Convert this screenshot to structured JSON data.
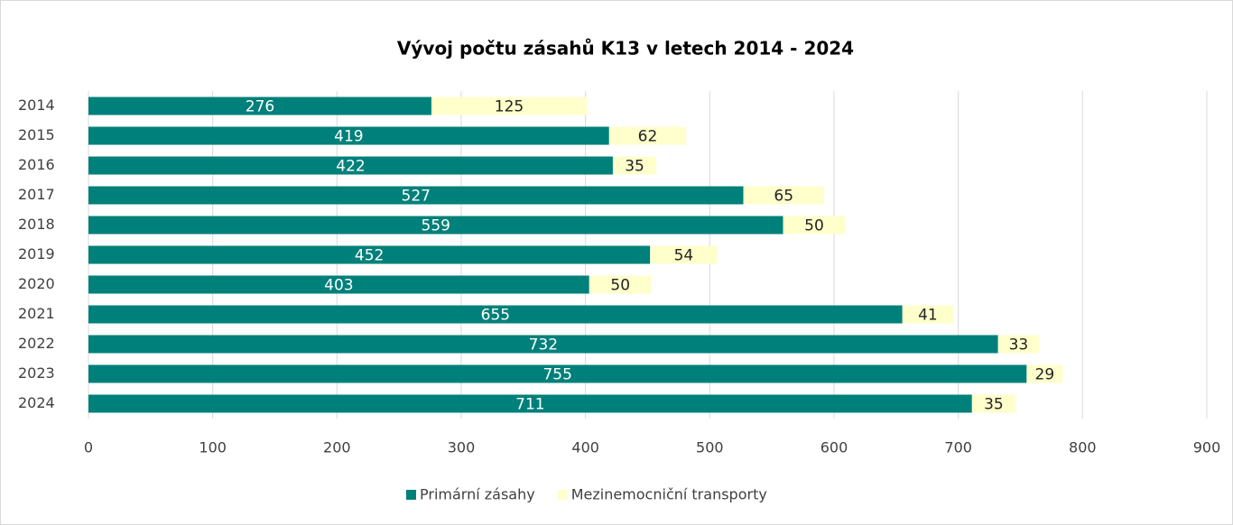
{
  "chart_data": {
    "type": "bar",
    "orientation": "horizontal",
    "stacked": true,
    "title": "Vývoj počtu zásahů K13 v letech 2014 - 2024",
    "categories": [
      "2014",
      "2015",
      "2016",
      "2017",
      "2018",
      "2019",
      "2020",
      "2021",
      "2022",
      "2023",
      "2024"
    ],
    "series": [
      {
        "name": "Primární zásahy",
        "color": "#00807a",
        "values": [
          276,
          419,
          422,
          527,
          559,
          452,
          403,
          655,
          732,
          755,
          711
        ]
      },
      {
        "name": "Mezinemocniční transporty",
        "color": "#ffffcc",
        "values": [
          125,
          62,
          35,
          65,
          50,
          54,
          50,
          41,
          33,
          29,
          35
        ]
      }
    ],
    "xlim": [
      0,
      900
    ],
    "xticks": [
      0,
      100,
      200,
      300,
      400,
      500,
      600,
      700,
      800,
      900
    ],
    "grid": true,
    "legend": "bottom"
  }
}
